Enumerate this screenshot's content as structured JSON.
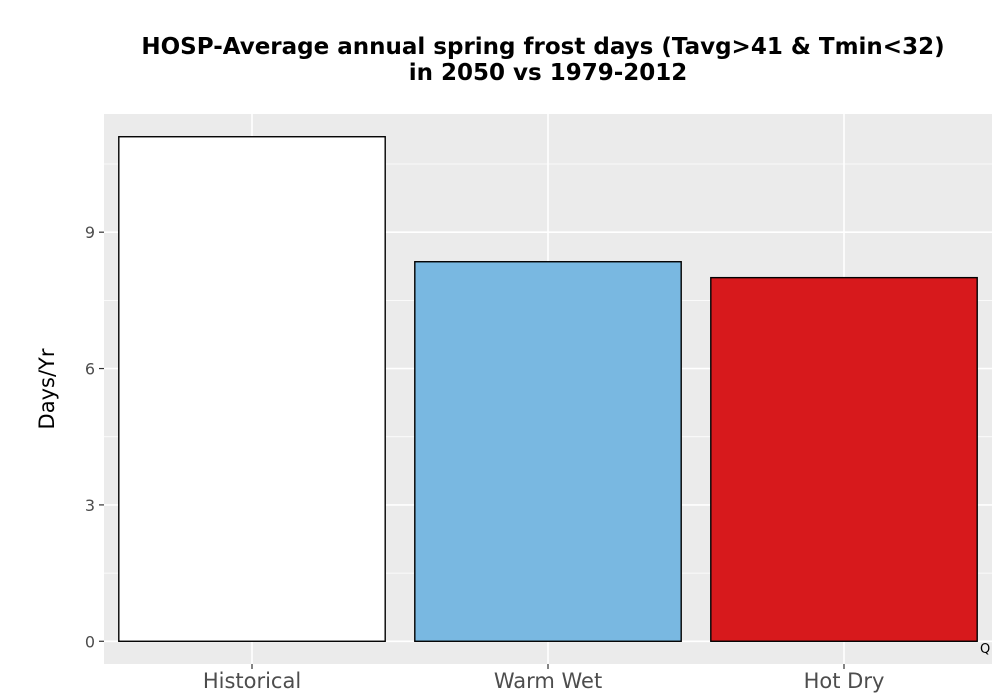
{
  "chart_data": {
    "type": "bar",
    "title_lines": [
      "HOSP-Average annual spring frost days (Tavg>41 & Tmin<32)",
      "in 2050 vs 1979-2012"
    ],
    "xlabel": "",
    "ylabel": "Days/Yr",
    "categories": [
      "Historical",
      "Warm Wet",
      "Hot Dry"
    ],
    "values": [
      11.1,
      8.35,
      8.0
    ],
    "colors": [
      "#ffffff",
      "#79b8e1",
      "#d7191c"
    ],
    "bar_outline": "#000000",
    "ylim": [
      -0.5,
      11.6
    ],
    "yticks": [
      0,
      3,
      6,
      9
    ],
    "ytick_labels": [
      "0",
      "3",
      "6",
      "9"
    ],
    "grid": true,
    "panel_background": "#ebebeb",
    "legend": "none",
    "caption": "Q"
  }
}
